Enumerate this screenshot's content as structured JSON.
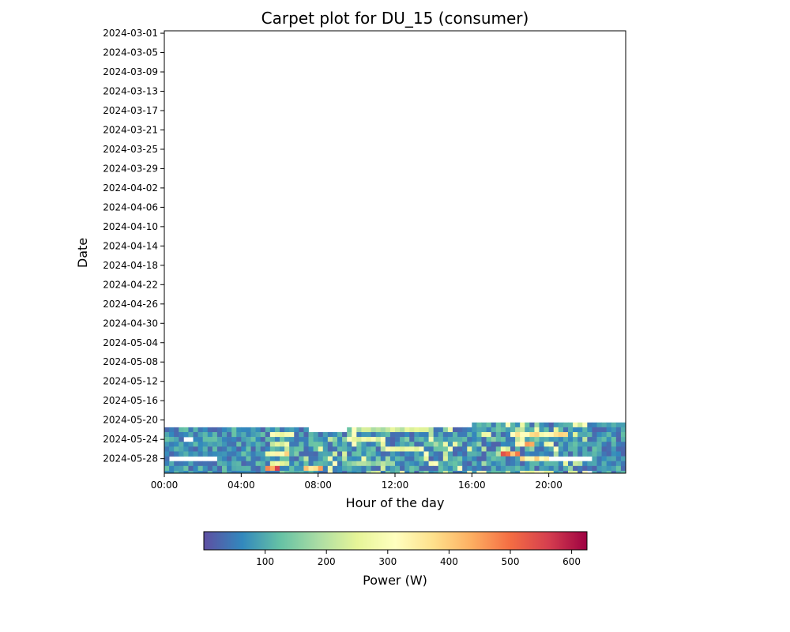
{
  "chart_data": {
    "type": "heatmap",
    "title": "Carpet plot for DU_15 (consumer)",
    "xlabel": "Hour of the day",
    "ylabel": "Date",
    "x_ticks": [
      "00:00",
      "04:00",
      "08:00",
      "12:00",
      "16:00",
      "20:00"
    ],
    "x_tick_hours": [
      0,
      4,
      8,
      12,
      16,
      20
    ],
    "xlim_hours": [
      0,
      24
    ],
    "y_ticks": [
      "2024-03-01",
      "2024-03-05",
      "2024-03-09",
      "2024-03-13",
      "2024-03-17",
      "2024-03-21",
      "2024-03-25",
      "2024-03-29",
      "2024-04-02",
      "2024-04-06",
      "2024-04-10",
      "2024-04-14",
      "2024-04-18",
      "2024-04-22",
      "2024-04-26",
      "2024-04-30",
      "2024-05-04",
      "2024-05-08",
      "2024-05-12",
      "2024-05-16",
      "2024-05-20",
      "2024-05-24",
      "2024-05-28"
    ],
    "ylim_dates": [
      "2024-03-01",
      "2024-05-31"
    ],
    "data_dates": [
      "2024-05-21",
      "2024-05-22",
      "2024-05-23",
      "2024-05-24",
      "2024-05-25",
      "2024-05-26",
      "2024-05-27",
      "2024-05-28",
      "2024-05-29",
      "2024-05-30",
      "2024-05-31"
    ],
    "interval_minutes": 15,
    "data_start": [
      "2024-05-21 16:00",
      "2024-05-22 00:00"
    ],
    "missing": [
      [
        "2024-05-22 07:30",
        "2024-05-22 09:30"
      ],
      [
        "2024-05-24 01:00",
        "2024-05-24 01:30"
      ],
      [
        "2024-05-28 00:15",
        "2024-05-28 02:45"
      ],
      [
        "2024-05-28 20:00",
        "2024-05-28 22:15"
      ],
      [
        "2024-05-31 22:00",
        "2024-05-31 22:15"
      ]
    ],
    "colorbar": {
      "label": "Power (W)",
      "min": 0,
      "max": 625,
      "ticks": [
        100,
        200,
        300,
        400,
        500,
        600
      ],
      "colormap": [
        "#5e4fa2",
        "#3288bd",
        "#66c2a5",
        "#abdda4",
        "#e6f598",
        "#ffffbf",
        "#fee08b",
        "#fdae61",
        "#f46d43",
        "#d53e4f",
        "#9e0142"
      ]
    },
    "hotspots": [
      {
        "date": "2024-05-22",
        "from": "10:00",
        "to": "14:00",
        "value": 220
      },
      {
        "date": "2024-05-23",
        "from": "05:30",
        "to": "06:45",
        "value": 300
      },
      {
        "date": "2024-05-23",
        "from": "18:00",
        "to": "21:00",
        "value": 330
      },
      {
        "date": "2024-05-24",
        "from": "09:30",
        "to": "11:30",
        "value": 260
      },
      {
        "date": "2024-05-25",
        "from": "05:30",
        "to": "06:30",
        "value": 250
      },
      {
        "date": "2024-05-25",
        "from": "18:15",
        "to": "19:15",
        "value": 380
      },
      {
        "date": "2024-05-26",
        "from": "11:30",
        "to": "13:30",
        "value": 300
      },
      {
        "date": "2024-05-27",
        "from": "05:15",
        "to": "06:30",
        "value": 330
      },
      {
        "date": "2024-05-27",
        "from": "17:30",
        "to": "18:30",
        "value": 480
      },
      {
        "date": "2024-05-28",
        "from": "18:30",
        "to": "20:00",
        "value": 350
      },
      {
        "date": "2024-05-29",
        "from": "05:30",
        "to": "06:30",
        "value": 260
      },
      {
        "date": "2024-05-29",
        "from": "09:30",
        "to": "12:00",
        "value": 180
      },
      {
        "date": "2024-05-30",
        "from": "05:15",
        "to": "06:00",
        "value": 520
      },
      {
        "date": "2024-05-30",
        "from": "07:15",
        "to": "08:15",
        "value": 380
      },
      {
        "date": "2024-05-31",
        "from": "18:30",
        "to": "20:15",
        "value": 300
      }
    ]
  }
}
